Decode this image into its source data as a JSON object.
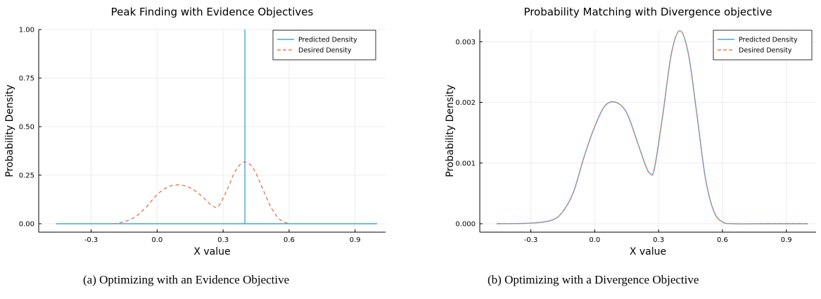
{
  "captions": {
    "a": "(a) Optimizing with an Evidence Objective",
    "b": "(b) Optimizing with a Divergence Objective"
  },
  "colors": {
    "predicted": "#3da7e8",
    "desired": "#e8795a",
    "axis": "#000000",
    "grid": "#ececec"
  },
  "chart_data": [
    {
      "type": "line",
      "title": "Peak Finding with Evidence Objectives",
      "xlabel": "X value",
      "ylabel": "Probability Density",
      "xlim": [
        -0.5,
        1.0
      ],
      "ylim": [
        0,
        1.0
      ],
      "xticks": [
        -0.3,
        0.0,
        0.3,
        0.6,
        0.9
      ],
      "xtick_labels": [
        "-0.3",
        "0.0",
        "0.3",
        "0.6",
        "0.9"
      ],
      "yticks": [
        0,
        0.25,
        0.5,
        0.75,
        1.0
      ],
      "ytick_labels": [
        "0.00",
        "0.25",
        "0.50",
        "0.75",
        "1.00"
      ],
      "grid": true,
      "legend_position": "top-right",
      "series": [
        {
          "name": "Predicted Density",
          "style": "solid",
          "x": [
            -0.46,
            0.399,
            0.399,
            0.399,
            0.399,
            1.0
          ],
          "y": [
            0,
            0,
            1.0,
            1.0,
            0,
            0
          ]
        },
        {
          "name": "Desired Density",
          "style": "dashed",
          "x": [
            -0.2,
            -0.15,
            -0.1,
            -0.05,
            0.0,
            0.05,
            0.1,
            0.15,
            0.2,
            0.25,
            0.28,
            0.32,
            0.36,
            0.4,
            0.44,
            0.48,
            0.52,
            0.56,
            0.6
          ],
          "y": [
            0.0,
            0.01,
            0.035,
            0.085,
            0.15,
            0.19,
            0.2,
            0.185,
            0.145,
            0.093,
            0.092,
            0.18,
            0.28,
            0.318,
            0.28,
            0.18,
            0.08,
            0.02,
            0.0
          ]
        }
      ]
    },
    {
      "type": "line",
      "title": "Probability Matching with Divergence objective",
      "xlabel": "X value",
      "ylabel": "Probability Density",
      "xlim": [
        -0.5,
        1.0
      ],
      "ylim": [
        0,
        0.0032
      ],
      "xticks": [
        -0.3,
        0.0,
        0.3,
        0.6,
        0.9
      ],
      "xtick_labels": [
        "-0.3",
        "0.0",
        "0.3",
        "0.6",
        "0.9"
      ],
      "yticks": [
        0,
        0.001,
        0.002,
        0.003
      ],
      "ytick_labels": [
        "0.000",
        "0.001",
        "0.002",
        "0.003"
      ],
      "grid": true,
      "legend_position": "top-right",
      "series": [
        {
          "name": "Predicted Density",
          "style": "solid",
          "x": [
            -0.46,
            -0.3,
            -0.2,
            -0.15,
            -0.1,
            -0.05,
            0.0,
            0.05,
            0.1,
            0.15,
            0.2,
            0.24,
            0.26,
            0.28,
            0.32,
            0.36,
            0.4,
            0.44,
            0.48,
            0.52,
            0.56,
            0.6,
            0.65,
            0.8,
            1.0
          ],
          "y": [
            0.0,
            1e-05,
            6e-05,
            0.0002,
            0.00052,
            0.0011,
            0.0016,
            0.00195,
            0.002,
            0.00183,
            0.00135,
            0.00095,
            0.00083,
            0.0009,
            0.0018,
            0.0028,
            0.00318,
            0.0028,
            0.0018,
            0.00075,
            0.0002,
            3e-05,
            0.0,
            0.0,
            0.0
          ]
        },
        {
          "name": "Desired Density",
          "style": "dashed",
          "x": [
            -0.46,
            -0.3,
            -0.2,
            -0.15,
            -0.1,
            -0.05,
            0.0,
            0.05,
            0.1,
            0.15,
            0.2,
            0.24,
            0.26,
            0.28,
            0.32,
            0.36,
            0.4,
            0.44,
            0.48,
            0.52,
            0.56,
            0.6,
            0.65,
            0.8,
            1.0
          ],
          "y": [
            0.0,
            1e-05,
            6e-05,
            0.0002,
            0.00052,
            0.0011,
            0.0016,
            0.00195,
            0.002,
            0.00183,
            0.00135,
            0.00095,
            0.00083,
            0.0009,
            0.0018,
            0.0028,
            0.00318,
            0.0028,
            0.0018,
            0.00075,
            0.0002,
            3e-05,
            0.0,
            0.0,
            0.0
          ]
        }
      ]
    }
  ]
}
